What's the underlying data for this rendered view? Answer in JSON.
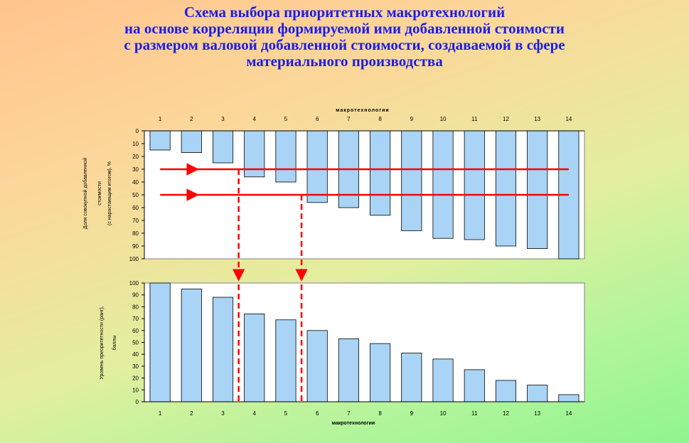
{
  "title_lines": [
    "Схема выбора приоритетных макротехнологий",
    "на основе корреляции формируемой ими  добавленной стоимости",
    "с размером валовой добавленной стоимости, создаваемой в сфере",
    "материального производства"
  ],
  "chart_data": [
    {
      "type": "bar",
      "orientation": "inverted",
      "x_axis_position": "top",
      "xlabel": "макротехнологии",
      "ylabel_lines": [
        "Доля совокупной добавленной",
        "стоимости",
        "(с нарастающим итогом), %"
      ],
      "categories": [
        "1",
        "2",
        "3",
        "4",
        "5",
        "6",
        "7",
        "8",
        "9",
        "10",
        "11",
        "12",
        "13",
        "14"
      ],
      "values": [
        15,
        17,
        25,
        36,
        40,
        56,
        60,
        66,
        78,
        84,
        85,
        90,
        92,
        100
      ],
      "ylim": [
        0,
        100
      ],
      "yticks": [
        0,
        10,
        20,
        30,
        40,
        50,
        60,
        70,
        80,
        90,
        100
      ],
      "bar_color": "#a9d4f5",
      "threshold_lines": [
        30,
        50
      ],
      "threshold_color": "#ff0000"
    },
    {
      "type": "bar",
      "xlabel": "макротехнологии",
      "ylabel_lines": [
        "Уровень приоритетности (ранг),",
        "баллы"
      ],
      "categories": [
        "1",
        "2",
        "3",
        "4",
        "5",
        "6",
        "7",
        "8",
        "9",
        "10",
        "11",
        "12",
        "13",
        "14"
      ],
      "values": [
        100,
        95,
        88,
        74,
        69,
        60,
        53,
        49,
        41,
        36,
        27,
        18,
        14,
        6
      ],
      "ylim": [
        0,
        100
      ],
      "yticks": [
        0,
        10,
        20,
        30,
        40,
        50,
        60,
        70,
        80,
        90,
        100
      ],
      "bar_color": "#a9d4f5",
      "cutoff_after_category": [
        "3",
        "5"
      ],
      "cutoff_color": "#ff0000"
    }
  ]
}
